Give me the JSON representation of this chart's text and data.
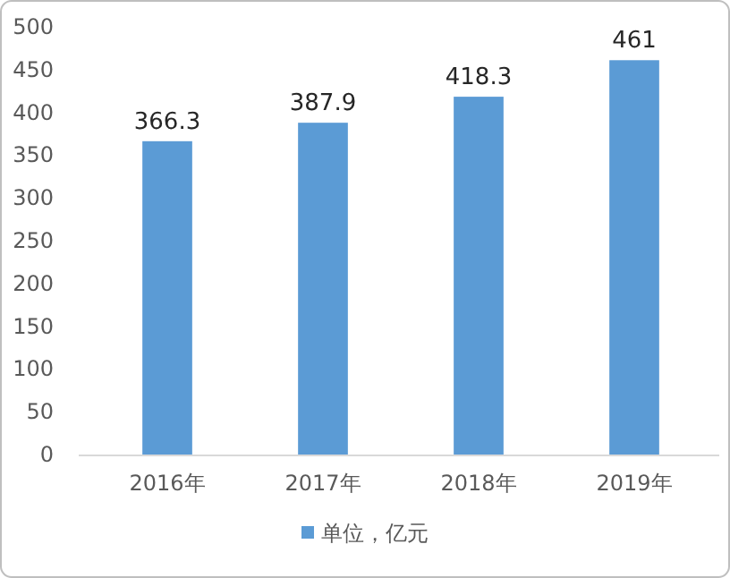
{
  "chart_data": {
    "type": "bar",
    "categories": [
      "2016年",
      "2017年",
      "2018年",
      "2019年"
    ],
    "series": [
      {
        "name": "单位，亿元",
        "color": "#5b9bd5",
        "values": [
          366.3,
          387.9,
          418.3,
          461
        ]
      }
    ],
    "ylim": [
      0,
      500
    ],
    "yticks": [
      0,
      50,
      100,
      150,
      200,
      250,
      300,
      350,
      400,
      450,
      500
    ],
    "data_labels": true,
    "legend": "bottom"
  }
}
